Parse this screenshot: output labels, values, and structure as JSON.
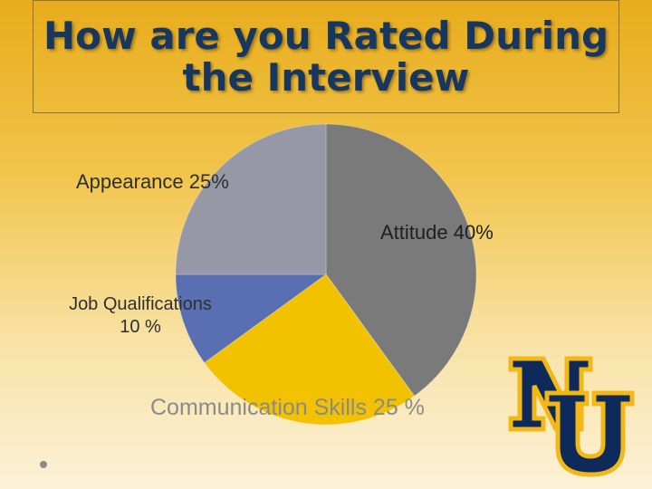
{
  "slide": {
    "title": "How are you Rated During\nthe Interview"
  },
  "chart_data": {
    "type": "pie",
    "slices": [
      {
        "label": "Attitude",
        "value": 40,
        "display": "Attitude 40%",
        "color": "#7a7a7a"
      },
      {
        "label": "Communication Skills",
        "value": 25,
        "display": "Communication Skills 25 %",
        "color": "#f2c200"
      },
      {
        "label": "Job Qualifications",
        "value": 10,
        "display": "Job Qualifications\n10 %",
        "color": "#5a6fb1"
      },
      {
        "label": "Appearance",
        "value": 25,
        "display": "Appearance 25%",
        "color": "#9698a6"
      }
    ]
  },
  "logo": {
    "text": "NU",
    "fill": "#0e2a5a",
    "outline": "#f2b818"
  }
}
